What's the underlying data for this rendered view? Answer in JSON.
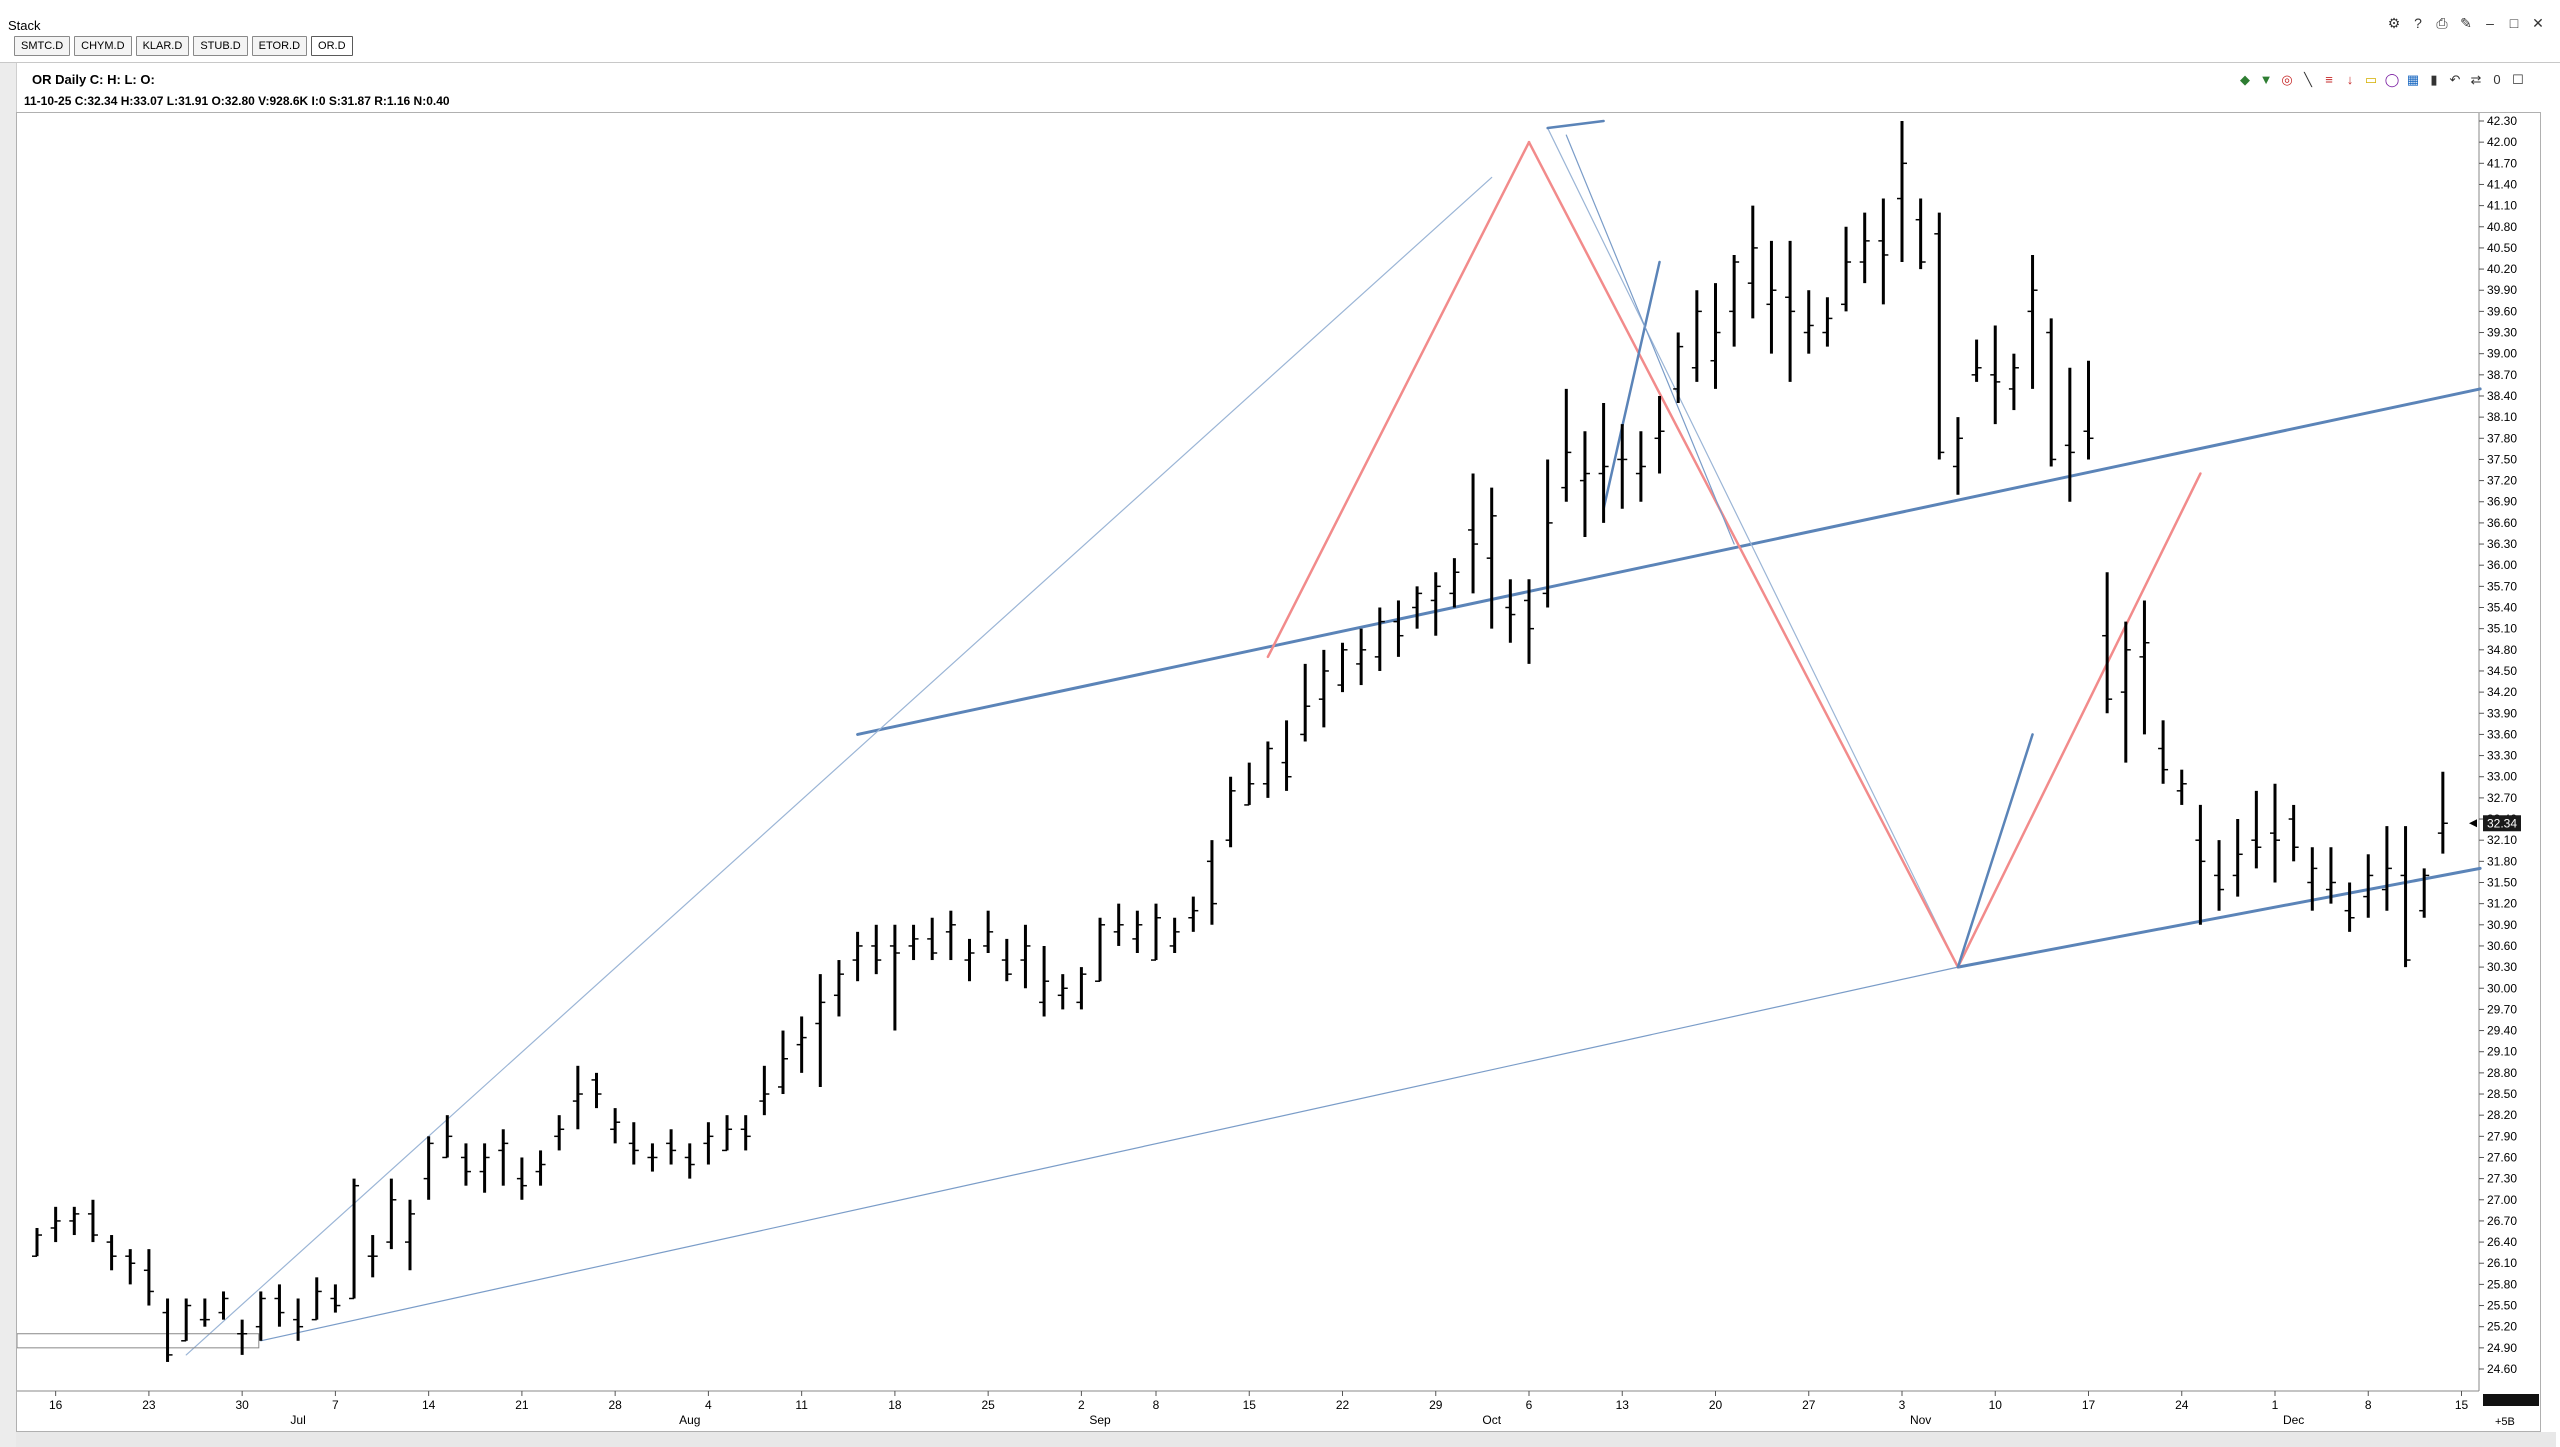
{
  "app": {
    "title": "Stack"
  },
  "window_controls": [
    "settings-icon",
    "help-icon",
    "print-icon",
    "pin-icon",
    "minimize-icon",
    "maximize-icon",
    "close-icon"
  ],
  "tabs": [
    {
      "label": "SMTC.D",
      "active": false
    },
    {
      "label": "CHYM.D",
      "active": false
    },
    {
      "label": "KLAR.D",
      "active": false
    },
    {
      "label": "STUB.D",
      "active": false
    },
    {
      "label": "ETOR.D",
      "active": false
    },
    {
      "label": "OR.D",
      "active": true
    }
  ],
  "header": {
    "title": "OR Daily C: H: L: O:",
    "stats": "11-10-25  C:32.34  H:33.07  L:31.91  O:32.80  V:928.6K  I:0  S:31.87  R:1.16  N:0.40"
  },
  "toolbar_icons": [
    "cursor-icon",
    "arrow-icon",
    "circle-icon",
    "line-icon",
    "fib-icon",
    "arrow-down-icon",
    "rectangle-icon",
    "ellipse-icon",
    "grid-icon",
    "trash-icon",
    "undo-icon",
    "cycle-icon",
    "zero-icon",
    "checkbox-icon"
  ],
  "chart_data": {
    "type": "bar",
    "style": "OHLC",
    "ylim": [
      24.6,
      42.3
    ],
    "y_ticks": [
      "24.60",
      "24.90",
      "25.20",
      "25.50",
      "25.80",
      "26.10",
      "26.40",
      "26.70",
      "27.00",
      "27.30",
      "27.60",
      "27.90",
      "28.20",
      "28.50",
      "28.80",
      "29.10",
      "29.40",
      "29.70",
      "30.00",
      "30.30",
      "30.60",
      "30.90",
      "31.20",
      "31.50",
      "31.80",
      "32.10",
      "32.40",
      "32.70",
      "33.00",
      "33.30",
      "33.60",
      "33.90",
      "34.20",
      "34.50",
      "34.80",
      "35.10",
      "35.40",
      "35.70",
      "36.00",
      "36.30",
      "36.60",
      "36.90",
      "37.20",
      "37.50",
      "37.80",
      "38.10",
      "38.40",
      "38.70",
      "39.00",
      "39.30",
      "39.60",
      "39.90",
      "40.20",
      "40.50",
      "40.80",
      "41.10",
      "41.40",
      "41.70",
      "42.00",
      "42.30"
    ],
    "last_price": "32.34",
    "x_ticks": [
      {
        "label": "16",
        "i": 1
      },
      {
        "label": "23",
        "i": 6
      },
      {
        "label": "30",
        "i": 11
      },
      {
        "label": "7",
        "i": 16
      },
      {
        "label": "14",
        "i": 21
      },
      {
        "label": "21",
        "i": 26
      },
      {
        "label": "28",
        "i": 31
      },
      {
        "label": "4",
        "i": 36
      },
      {
        "label": "11",
        "i": 41
      },
      {
        "label": "18",
        "i": 46
      },
      {
        "label": "25",
        "i": 51
      },
      {
        "label": "2",
        "i": 56
      },
      {
        "label": "8",
        "i": 60
      },
      {
        "label": "15",
        "i": 65
      },
      {
        "label": "22",
        "i": 70
      },
      {
        "label": "29",
        "i": 75
      },
      {
        "label": "6",
        "i": 80
      },
      {
        "label": "13",
        "i": 85
      },
      {
        "label": "20",
        "i": 90
      },
      {
        "label": "27",
        "i": 95
      },
      {
        "label": "3",
        "i": 100
      },
      {
        "label": "10",
        "i": 105
      },
      {
        "label": "17",
        "i": 110
      },
      {
        "label": "24",
        "i": 115
      },
      {
        "label": "1",
        "i": 120
      },
      {
        "label": "8",
        "i": 125
      },
      {
        "label": "15",
        "i": 130
      }
    ],
    "month_labels": [
      {
        "label": "Jul",
        "i": 14
      },
      {
        "label": "Aug",
        "i": 35
      },
      {
        "label": "Sep",
        "i": 57
      },
      {
        "label": "Oct",
        "i": 78
      },
      {
        "label": "Nov",
        "i": 101
      },
      {
        "label": "Dec",
        "i": 121
      }
    ],
    "timeframe_label": "+5B",
    "bars": [
      [
        26.2,
        26.6,
        26.2,
        26.5
      ],
      [
        26.6,
        26.9,
        26.4,
        26.7
      ],
      [
        26.7,
        26.9,
        26.5,
        26.8
      ],
      [
        26.8,
        27.0,
        26.4,
        26.5
      ],
      [
        26.4,
        26.5,
        26.0,
        26.2
      ],
      [
        26.2,
        26.3,
        25.8,
        26.1
      ],
      [
        26.0,
        26.3,
        25.5,
        25.7
      ],
      [
        25.4,
        25.6,
        24.7,
        24.8
      ],
      [
        25.0,
        25.6,
        25.0,
        25.5
      ],
      [
        25.3,
        25.6,
        25.2,
        25.3
      ],
      [
        25.4,
        25.7,
        25.3,
        25.6
      ],
      [
        25.1,
        25.3,
        24.8,
        25.1
      ],
      [
        25.2,
        25.7,
        25.0,
        25.6
      ],
      [
        25.6,
        25.8,
        25.2,
        25.4
      ],
      [
        25.3,
        25.6,
        25.0,
        25.2
      ],
      [
        25.3,
        25.9,
        25.3,
        25.7
      ],
      [
        25.6,
        25.8,
        25.4,
        25.5
      ],
      [
        25.6,
        27.3,
        25.6,
        27.2
      ],
      [
        26.2,
        26.5,
        25.9,
        26.2
      ],
      [
        26.4,
        27.3,
        26.3,
        27.0
      ],
      [
        26.4,
        27.0,
        26.0,
        26.8
      ],
      [
        27.3,
        27.9,
        27.0,
        27.8
      ],
      [
        27.6,
        28.2,
        27.6,
        27.9
      ],
      [
        27.6,
        27.8,
        27.2,
        27.4
      ],
      [
        27.4,
        27.8,
        27.1,
        27.6
      ],
      [
        27.7,
        28.0,
        27.2,
        27.8
      ],
      [
        27.3,
        27.6,
        27.0,
        27.2
      ],
      [
        27.4,
        27.7,
        27.2,
        27.5
      ],
      [
        27.9,
        28.2,
        27.7,
        28.0
      ],
      [
        28.4,
        28.9,
        28.0,
        28.5
      ],
      [
        28.7,
        28.8,
        28.3,
        28.5
      ],
      [
        28.0,
        28.3,
        27.8,
        28.1
      ],
      [
        27.8,
        28.1,
        27.5,
        27.7
      ],
      [
        27.6,
        27.8,
        27.4,
        27.6
      ],
      [
        27.8,
        28.0,
        27.5,
        27.7
      ],
      [
        27.6,
        27.8,
        27.3,
        27.5
      ],
      [
        27.8,
        28.1,
        27.5,
        27.9
      ],
      [
        27.7,
        28.2,
        27.7,
        28.0
      ],
      [
        28.0,
        28.2,
        27.7,
        27.9
      ],
      [
        28.4,
        28.9,
        28.2,
        28.5
      ],
      [
        28.6,
        29.4,
        28.5,
        29.0
      ],
      [
        29.2,
        29.6,
        28.8,
        29.3
      ],
      [
        29.5,
        30.2,
        28.6,
        29.8
      ],
      [
        29.9,
        30.4,
        29.6,
        30.2
      ],
      [
        30.4,
        30.8,
        30.1,
        30.6
      ],
      [
        30.6,
        30.9,
        30.2,
        30.4
      ],
      [
        30.6,
        30.9,
        29.4,
        30.5
      ],
      [
        30.6,
        30.9,
        30.4,
        30.7
      ],
      [
        30.7,
        31.0,
        30.4,
        30.5
      ],
      [
        30.8,
        31.1,
        30.4,
        30.9
      ],
      [
        30.4,
        30.7,
        30.1,
        30.5
      ],
      [
        30.6,
        31.1,
        30.5,
        30.8
      ],
      [
        30.4,
        30.7,
        30.1,
        30.2
      ],
      [
        30.4,
        30.9,
        30.0,
        30.6
      ],
      [
        29.8,
        30.6,
        29.6,
        30.1
      ],
      [
        29.9,
        30.2,
        29.7,
        30.0
      ],
      [
        29.8,
        30.3,
        29.7,
        30.2
      ],
      [
        30.1,
        31.0,
        30.1,
        30.9
      ],
      [
        30.8,
        31.2,
        30.6,
        30.9
      ],
      [
        30.7,
        31.1,
        30.5,
        30.9
      ],
      [
        30.4,
        31.2,
        30.4,
        31.0
      ],
      [
        30.6,
        31.0,
        30.5,
        30.8
      ],
      [
        31.0,
        31.3,
        30.8,
        31.1
      ],
      [
        31.8,
        32.1,
        30.9,
        31.2
      ],
      [
        32.1,
        33.0,
        32.0,
        32.8
      ],
      [
        32.6,
        33.2,
        32.6,
        32.9
      ],
      [
        32.9,
        33.5,
        32.7,
        33.4
      ],
      [
        33.2,
        33.8,
        32.8,
        33.0
      ],
      [
        33.6,
        34.6,
        33.5,
        34.0
      ],
      [
        34.1,
        34.8,
        33.7,
        34.5
      ],
      [
        34.3,
        34.9,
        34.2,
        34.8
      ],
      [
        34.6,
        35.1,
        34.3,
        34.8
      ],
      [
        34.7,
        35.4,
        34.5,
        35.2
      ],
      [
        35.2,
        35.5,
        34.7,
        35.0
      ],
      [
        35.4,
        35.7,
        35.1,
        35.6
      ],
      [
        35.5,
        35.9,
        35.0,
        35.7
      ],
      [
        35.6,
        36.1,
        35.4,
        35.9
      ],
      [
        36.5,
        37.3,
        35.6,
        36.3
      ],
      [
        36.1,
        37.1,
        35.1,
        36.7
      ],
      [
        35.4,
        35.8,
        34.9,
        35.3
      ],
      [
        35.5,
        35.8,
        34.6,
        35.1
      ],
      [
        35.6,
        37.5,
        35.4,
        36.6
      ],
      [
        37.1,
        38.5,
        36.9,
        37.6
      ],
      [
        37.2,
        37.9,
        36.4,
        37.3
      ],
      [
        37.3,
        38.3,
        36.6,
        37.4
      ],
      [
        37.5,
        38.0,
        36.8,
        37.5
      ],
      [
        37.3,
        37.9,
        36.9,
        37.4
      ],
      [
        37.8,
        38.4,
        37.3,
        37.9
      ],
      [
        38.5,
        39.3,
        38.3,
        39.1
      ],
      [
        38.8,
        39.9,
        38.6,
        39.6
      ],
      [
        38.9,
        40.0,
        38.5,
        39.3
      ],
      [
        39.6,
        40.4,
        39.1,
        40.3
      ],
      [
        40.0,
        41.1,
        39.5,
        40.5
      ],
      [
        39.7,
        40.6,
        39.0,
        39.9
      ],
      [
        39.8,
        40.6,
        38.6,
        39.6
      ],
      [
        39.3,
        39.9,
        39.0,
        39.4
      ],
      [
        39.3,
        39.8,
        39.1,
        39.5
      ],
      [
        39.7,
        40.8,
        39.6,
        40.3
      ],
      [
        40.3,
        41.0,
        40.0,
        40.6
      ],
      [
        40.6,
        41.2,
        39.7,
        40.4
      ],
      [
        41.2,
        42.3,
        40.3,
        41.7
      ],
      [
        40.9,
        41.2,
        40.2,
        40.3
      ],
      [
        40.7,
        41.0,
        37.5,
        37.6
      ],
      [
        37.4,
        38.1,
        37.0,
        37.8
      ],
      [
        38.7,
        39.2,
        38.6,
        38.8
      ],
      [
        38.7,
        39.4,
        38.0,
        38.6
      ],
      [
        38.5,
        39.0,
        38.2,
        38.8
      ],
      [
        39.6,
        40.4,
        38.5,
        39.9
      ],
      [
        39.3,
        39.5,
        37.4,
        37.5
      ],
      [
        37.7,
        38.8,
        36.9,
        37.6
      ],
      [
        37.9,
        38.9,
        37.5,
        37.8
      ],
      [
        35.0,
        35.9,
        33.9,
        34.1
      ],
      [
        34.2,
        35.2,
        33.2,
        34.8
      ],
      [
        34.7,
        35.5,
        33.6,
        34.9
      ],
      [
        33.4,
        33.8,
        32.9,
        33.1
      ],
      [
        32.8,
        33.1,
        32.6,
        32.9
      ],
      [
        32.1,
        32.6,
        30.9,
        31.8
      ],
      [
        31.6,
        32.1,
        31.1,
        31.4
      ],
      [
        31.6,
        32.4,
        31.3,
        31.9
      ],
      [
        32.1,
        32.8,
        31.7,
        32.0
      ],
      [
        32.2,
        32.9,
        31.5,
        32.1
      ],
      [
        32.4,
        32.6,
        31.8,
        32.0
      ],
      [
        31.5,
        32.0,
        31.1,
        31.7
      ],
      [
        31.4,
        32.0,
        31.2,
        31.5
      ],
      [
        31.1,
        31.5,
        30.8,
        31.0
      ],
      [
        31.3,
        31.9,
        31.0,
        31.6
      ],
      [
        31.4,
        32.3,
        31.1,
        31.7
      ],
      [
        31.6,
        32.3,
        30.3,
        30.4
      ],
      [
        31.1,
        31.7,
        31.0,
        31.6
      ],
      [
        32.2,
        33.07,
        31.91,
        32.34
      ]
    ],
    "drawings": [
      {
        "name": "channel-upper-line",
        "color": "#5b84b8",
        "width": 3,
        "p1": [
          44,
          33.6
        ],
        "p2": [
          131,
          38.5
        ]
      },
      {
        "name": "channel-lower-line",
        "color": "#5b84b8",
        "width": 3,
        "p1": [
          103,
          30.3
        ],
        "p2": [
          131,
          31.7
        ]
      },
      {
        "name": "channel-lower-thin-line",
        "color": "#7a9cc8",
        "width": 1.2,
        "p1": [
          12,
          25.0
        ],
        "p2": [
          103,
          30.3
        ]
      },
      {
        "name": "fan-upper-thin-line",
        "color": "#9bb5d6",
        "width": 1.2,
        "p1": [
          8,
          24.8
        ],
        "p2": [
          78,
          41.5
        ]
      },
      {
        "name": "fan-mid-thin-line",
        "color": "#9bb5d6",
        "width": 1.2,
        "p1": [
          81,
          42.2
        ],
        "p2": [
          103,
          30.3
        ]
      },
      {
        "name": "red-wave-up",
        "color": "#f28b8b",
        "width": 2.5,
        "p1": [
          66,
          34.7
        ],
        "p2": [
          80,
          42.0
        ]
      },
      {
        "name": "red-wave-down",
        "color": "#f28b8b",
        "width": 2.5,
        "p1": [
          80,
          42.0
        ],
        "p2": [
          103,
          30.3
        ]
      },
      {
        "name": "red-wave-projection",
        "color": "#f28b8b",
        "width": 2.5,
        "p1": [
          103,
          30.3
        ],
        "p2": [
          116,
          37.3
        ]
      },
      {
        "name": "blue-swing-up",
        "color": "#5b84b8",
        "width": 2.5,
        "p1": [
          84,
          36.8
        ],
        "p2": [
          87,
          40.3
        ]
      },
      {
        "name": "blue-swing-up-2",
        "color": "#5b84b8",
        "width": 2.5,
        "p1": [
          103,
          30.3
        ],
        "p2": [
          107,
          33.6
        ]
      },
      {
        "name": "blue-top-segment",
        "color": "#5b84b8",
        "width": 2.5,
        "p1": [
          81,
          42.2
        ],
        "p2": [
          84,
          42.3
        ]
      },
      {
        "name": "blue-fan-line",
        "color": "#7a9cc8",
        "width": 1.2,
        "p1": [
          82,
          42.1
        ],
        "p2": [
          91,
          36.3
        ]
      }
    ]
  }
}
